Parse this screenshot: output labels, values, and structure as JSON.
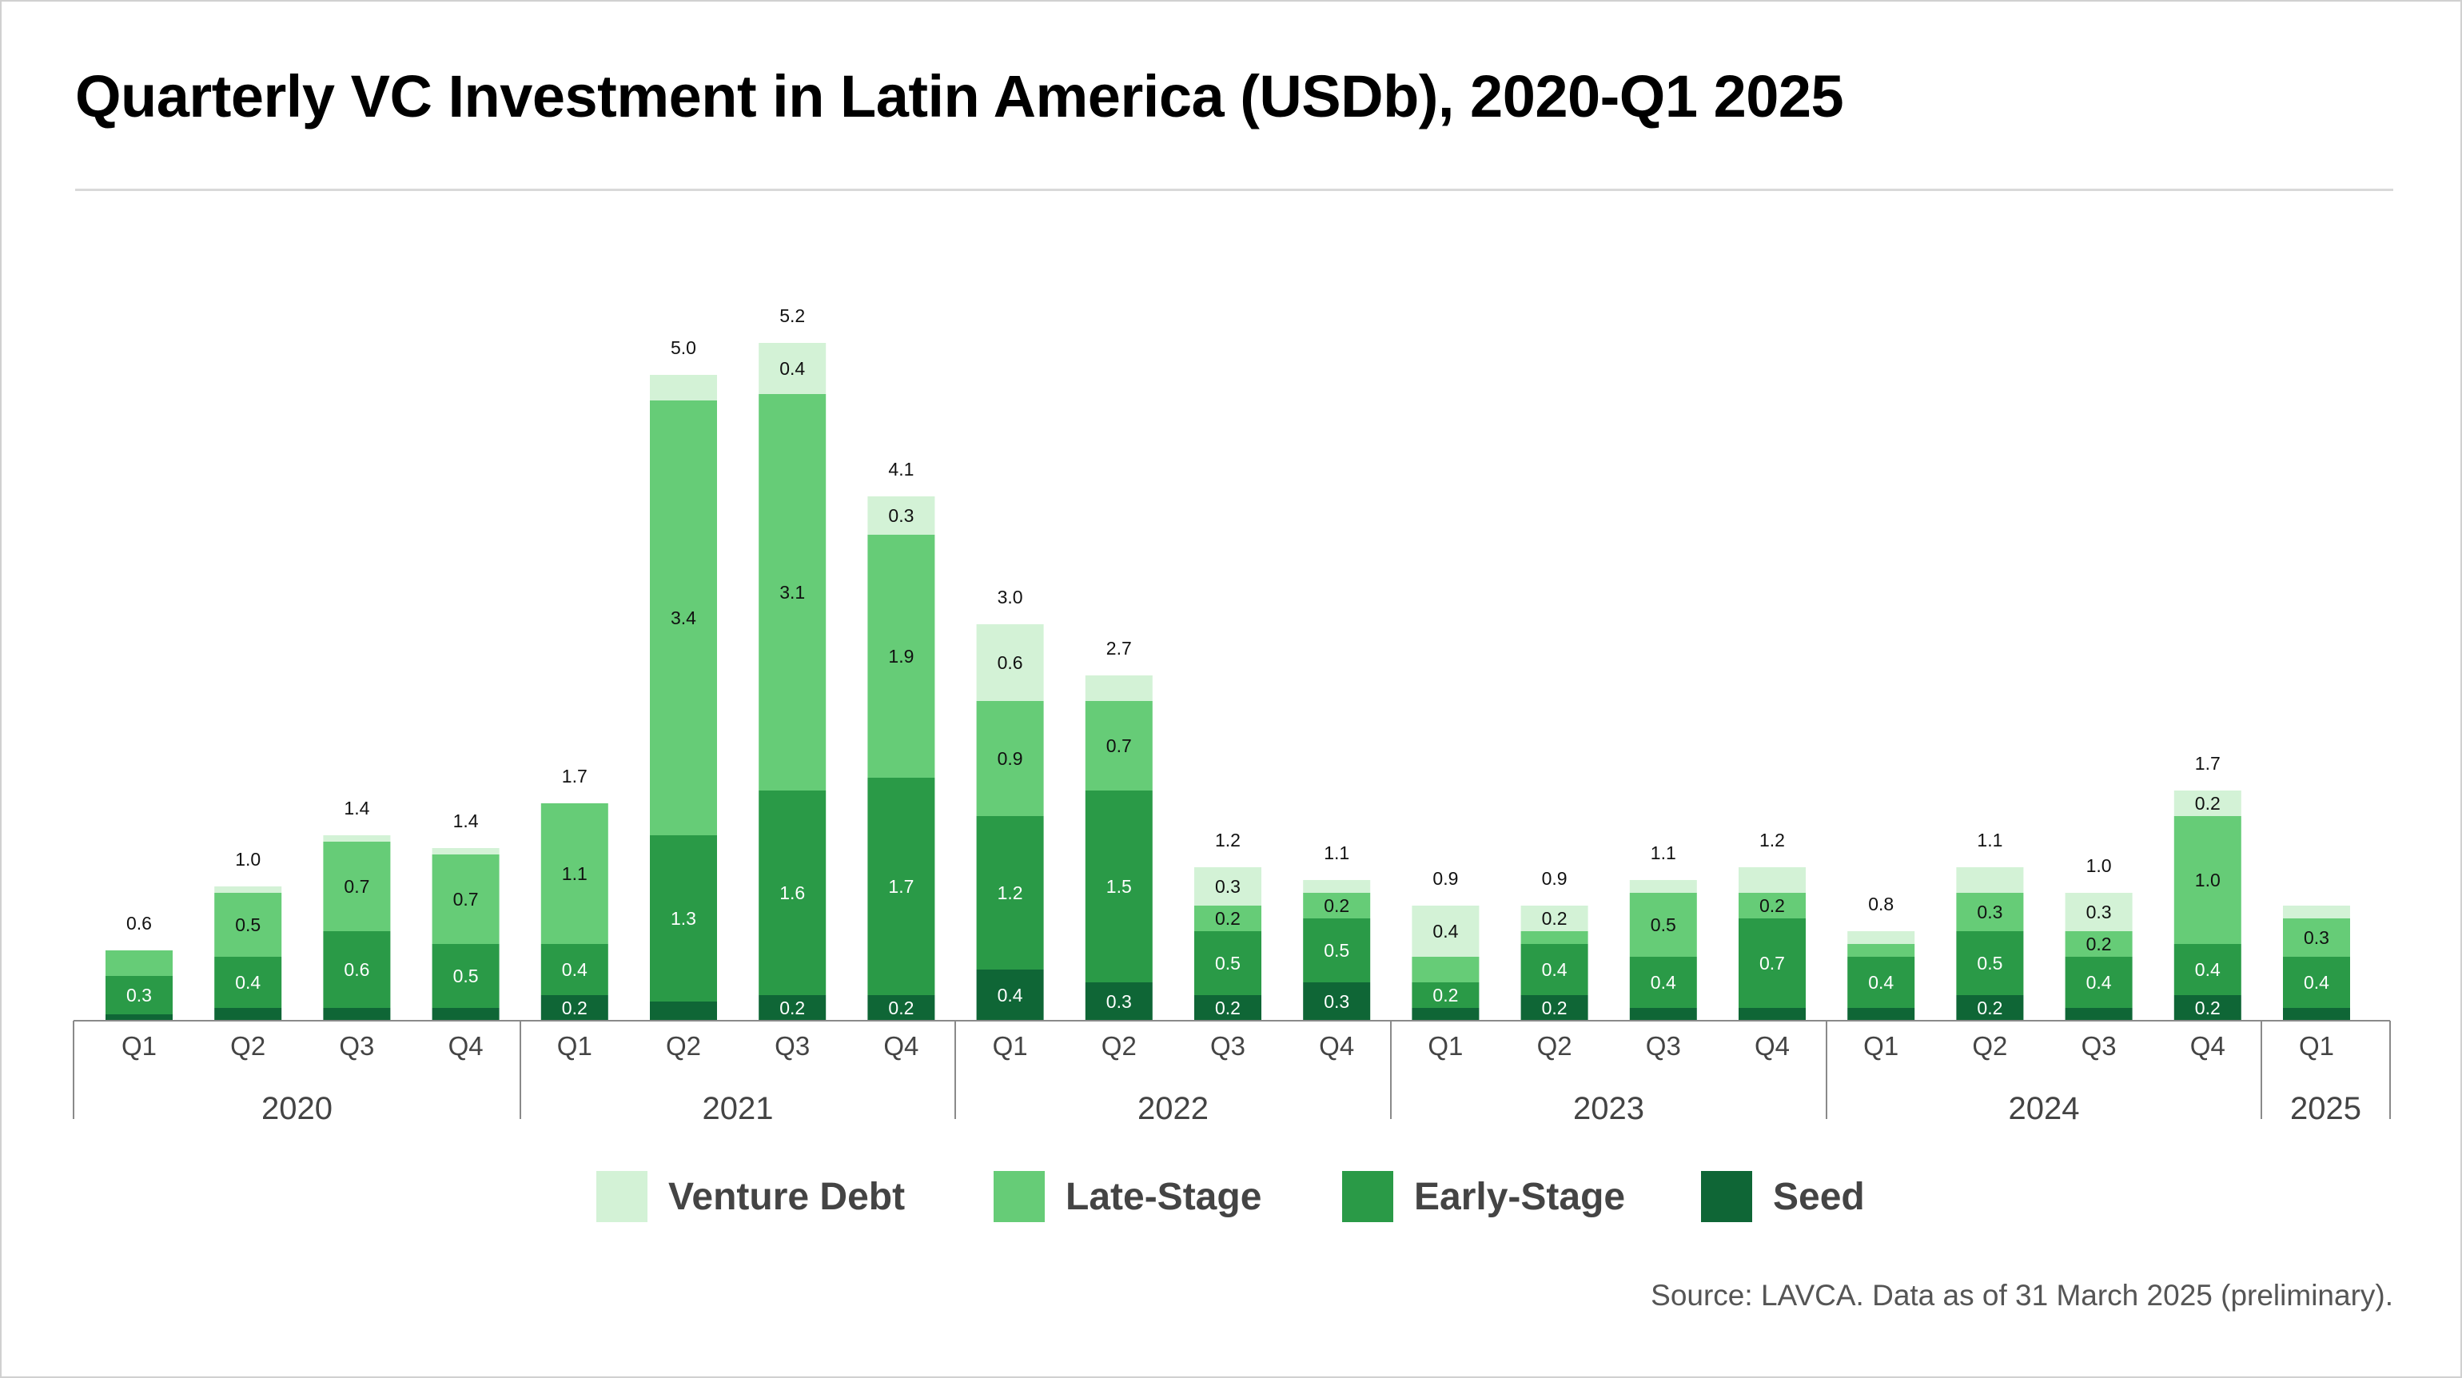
{
  "title": "Quarterly VC Investment in Latin America (USDb), 2020-Q1 2025",
  "source": "Source: LAVCA. Data as of 31 March 2025 (preliminary).",
  "colors": {
    "venture_debt": "#d3f2d6",
    "late_stage": "#66cc77",
    "early_stage": "#2a9a47",
    "seed": "#0f6636"
  },
  "legend": [
    {
      "key": "venture_debt",
      "label": "Venture Debt"
    },
    {
      "key": "late_stage",
      "label": "Late-Stage"
    },
    {
      "key": "early_stage",
      "label": "Early-Stage"
    },
    {
      "key": "seed",
      "label": "Seed"
    }
  ],
  "chart_data": {
    "type": "bar",
    "stacked": true,
    "title": "Quarterly VC Investment in Latin America (USDb), 2020-Q1 2025",
    "year_groups": [
      {
        "year": "2020",
        "quarters": [
          "Q1",
          "Q2",
          "Q3",
          "Q4"
        ]
      },
      {
        "year": "2021",
        "quarters": [
          "Q1",
          "Q2",
          "Q3",
          "Q4"
        ]
      },
      {
        "year": "2022",
        "quarters": [
          "Q1",
          "Q2",
          "Q3",
          "Q4"
        ]
      },
      {
        "year": "2023",
        "quarters": [
          "Q1",
          "Q2",
          "Q3",
          "Q4"
        ]
      },
      {
        "year": "2024",
        "quarters": [
          "Q1",
          "Q2",
          "Q3",
          "Q4"
        ]
      },
      {
        "year": "2025",
        "quarters": [
          "Q1"
        ]
      }
    ],
    "categories": [
      "2020 Q1",
      "2020 Q2",
      "2020 Q3",
      "2020 Q4",
      "2021 Q1",
      "2021 Q2",
      "2021 Q3",
      "2021 Q4",
      "2022 Q1",
      "2022 Q2",
      "2022 Q3",
      "2022 Q4",
      "2023 Q1",
      "2023 Q2",
      "2023 Q3",
      "2023 Q4",
      "2024 Q1",
      "2024 Q2",
      "2024 Q3",
      "2024 Q4",
      "2025 Q1"
    ],
    "totals": [
      0.6,
      1.0,
      1.4,
      1.4,
      1.7,
      5.0,
      5.2,
      4.1,
      3.0,
      2.7,
      1.2,
      1.1,
      0.9,
      0.9,
      1.1,
      1.2,
      0.8,
      1.1,
      1.0,
      1.7,
      null
    ],
    "total_labels": [
      "0.6",
      "1.0",
      "1.4",
      "1.4",
      "1.7",
      "5.0",
      "5.2",
      "4.1",
      "3.0",
      "2.7",
      "1.2",
      "1.1",
      "0.9",
      "0.9",
      "1.1",
      "1.2",
      "0.8",
      "1.1",
      "1.0",
      "1.7",
      ""
    ],
    "series": [
      {
        "name": "Seed",
        "key": "seed",
        "values": [
          0.05,
          0.1,
          0.1,
          0.1,
          0.2,
          0.15,
          0.2,
          0.2,
          0.4,
          0.3,
          0.2,
          0.3,
          0.1,
          0.2,
          0.1,
          0.1,
          0.1,
          0.2,
          0.1,
          0.2,
          0.1
        ],
        "labels": [
          "",
          "",
          "",
          "",
          "0.2",
          "",
          "0.2",
          "0.2",
          "0.4",
          "0.3",
          "0.2",
          "0.3",
          "",
          "0.2",
          "",
          "",
          "",
          "0.2",
          "",
          "0.2",
          ""
        ]
      },
      {
        "name": "Early-Stage",
        "key": "early_stage",
        "values": [
          0.3,
          0.4,
          0.6,
          0.5,
          0.4,
          1.3,
          1.6,
          1.7,
          1.2,
          1.5,
          0.5,
          0.5,
          0.2,
          0.4,
          0.4,
          0.7,
          0.4,
          0.5,
          0.4,
          0.4,
          0.4
        ],
        "labels": [
          "0.3",
          "0.4",
          "0.6",
          "0.5",
          "0.4",
          "1.3",
          "1.6",
          "1.7",
          "1.2",
          "1.5",
          "0.5",
          "0.5",
          "0.2",
          "0.4",
          "0.4",
          "0.7",
          "0.4",
          "0.5",
          "0.4",
          "0.4",
          "0.4"
        ]
      },
      {
        "name": "Late-Stage",
        "key": "late_stage",
        "values": [
          0.2,
          0.5,
          0.7,
          0.7,
          1.1,
          3.4,
          3.1,
          1.9,
          0.9,
          0.7,
          0.2,
          0.2,
          0.2,
          0.1,
          0.5,
          0.2,
          0.1,
          0.3,
          0.2,
          1.0,
          0.3
        ],
        "labels": [
          "",
          "0.5",
          "0.7",
          "0.7",
          "1.1",
          "3.4",
          "3.1",
          "1.9",
          "0.9",
          "0.7",
          "0.2",
          "0.2",
          "",
          "",
          "0.5",
          "0.2",
          "",
          "0.3",
          "0.2",
          "1.0",
          "0.3"
        ]
      },
      {
        "name": "Venture Debt",
        "key": "venture_debt",
        "values": [
          0,
          0.05,
          0.05,
          0.05,
          0,
          0.2,
          0.4,
          0.3,
          0.6,
          0.2,
          0.3,
          0.1,
          0.4,
          0.2,
          0.1,
          0.2,
          0.1,
          0.2,
          0.3,
          0.2,
          0.1
        ],
        "labels": [
          "",
          "",
          "",
          "",
          "",
          "",
          "0.4",
          "0.3",
          "0.6",
          "",
          "0.3",
          "",
          "0.4",
          "0.2",
          "",
          "",
          "",
          "",
          "0.3",
          "0.2",
          ""
        ]
      }
    ],
    "ylim": [
      0,
      5.6
    ],
    "grid": false,
    "legend_position": "bottom-center"
  }
}
